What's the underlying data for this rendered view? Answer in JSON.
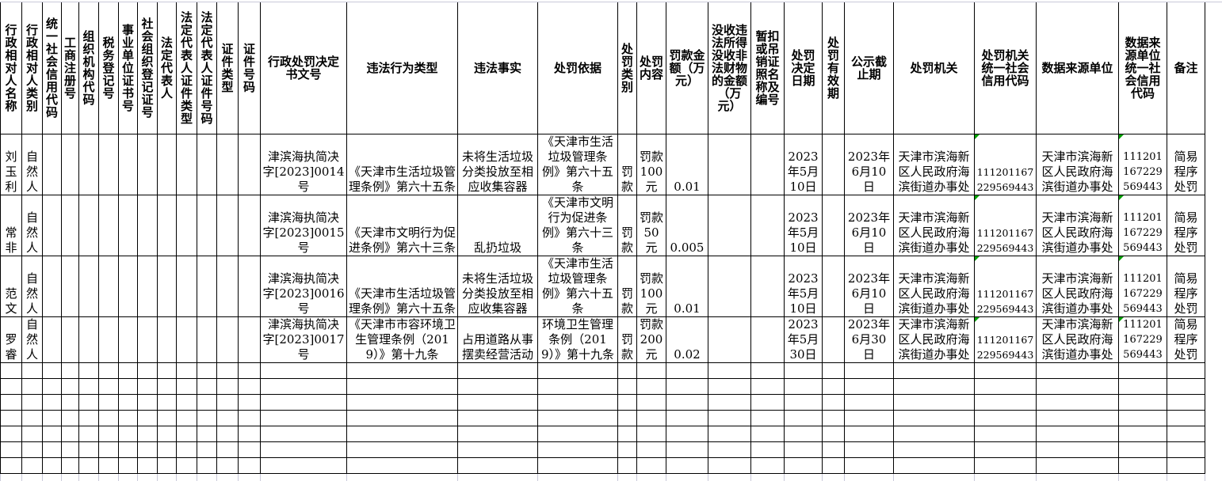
{
  "colors": {
    "border": "#000000",
    "faint_grid": "#c9c9d9",
    "error_indicator_green": "#00a000",
    "background": "#ffffff",
    "text": "#000000"
  },
  "table": {
    "columns": [
      "行政相对人名称",
      "行政相对人类别",
      "统一社会信用代码",
      "工商注册号",
      "组织机构代码",
      "税务登记号",
      "事业单位证书号",
      "社会组织登记证号",
      "法定代表人",
      "法定代表人证件类型",
      "法定代表人证件号码",
      "证件类型",
      "证件号码",
      "行政处罚决定书文号",
      "违法行为类型",
      "违法事实",
      "处罚依据",
      "处罚类别",
      "处罚内容",
      "罚款金额（万元）",
      "没收违法所得没收非法财物的金额（万元）",
      "暂扣或吊销证照名称及编号",
      "处罚决定日期",
      "处罚有效期",
      "公示截止期",
      "处罚机关",
      "处罚机关统一社会信用代码",
      "数据来源单位",
      "数据来源单位统一社会信用代码",
      "备注"
    ],
    "rows": [
      [
        "刘玉利",
        "自然人",
        "",
        "",
        "",
        "",
        "",
        "",
        "",
        "",
        "",
        "",
        "",
        "津滨海执简决字[2023]0014号",
        "《天津市生活垃圾管理条例》第六十五条",
        "未将生活垃圾分类投放至相应收集容器",
        "《天津市生活垃圾管理条例》第六十五条",
        "罚款",
        "罚款100元",
        "0.01",
        "",
        "",
        "2023年5月10日",
        "",
        "2023年6月10日",
        "天津市滨海新区人民政府海滨街道办事处",
        "111201167229569443",
        "天津市滨海新区人民政府海滨街道办事处",
        "111201167229569443",
        "简易程序处罚"
      ],
      [
        "常非",
        "自然人",
        "",
        "",
        "",
        "",
        "",
        "",
        "",
        "",
        "",
        "",
        "",
        "津滨海执简决字[2023]0015号",
        "《天津市文明行为促进条例》第六十三条",
        "乱扔垃圾",
        "《天津市文明行为促进条例》第六十三条",
        "罚款",
        "罚款50元",
        "0.005",
        "",
        "",
        "2023年5月10日",
        "",
        "2023年6月10日",
        "天津市滨海新区人民政府海滨街道办事处",
        "111201167229569443",
        "天津市滨海新区人民政府海滨街道办事处",
        "111201167229569443",
        "简易程序处罚"
      ],
      [
        "范文",
        "自然人",
        "",
        "",
        "",
        "",
        "",
        "",
        "",
        "",
        "",
        "",
        "",
        "津滨海执简决字[2023]0016号",
        "《天津市生活垃圾管理条例》第六十五条",
        "未将生活垃圾分类投放至相应收集容器",
        "《天津市生活垃圾管理条例》第六十五条",
        "罚款",
        "罚款100元",
        "0.01",
        "",
        "",
        "2023年5月10日",
        "",
        "2023年6月10日",
        "天津市滨海新区人民政府海滨街道办事处",
        "111201167229569443",
        "天津市滨海新区人民政府海滨街道办事处",
        "111201167229569443",
        "简易程序处罚"
      ],
      [
        "罗睿",
        "自然人",
        "",
        "",
        "",
        "",
        "",
        "",
        "",
        "",
        "",
        "",
        "",
        "津滨海执简决字[2023]0017号",
        "《天津市市容环境卫生管理条例（2019）》第十九条",
        "占用道路从事摆卖经营活动",
        "环境卫生管理条例（2019）》第十九条",
        "罚款",
        "罚款200元",
        "0.02",
        "",
        "",
        "2023年5月30日",
        "",
        "2023年6月30日",
        "天津市滨海新区人民政府海滨街道办事处",
        "111201167229569443",
        "天津市滨海新区人民政府海滨街道办事处",
        "111201167229569443",
        "简易程序处罚"
      ]
    ],
    "error_indicator_columns": [
      26,
      28
    ],
    "empty_row_count": 7
  }
}
